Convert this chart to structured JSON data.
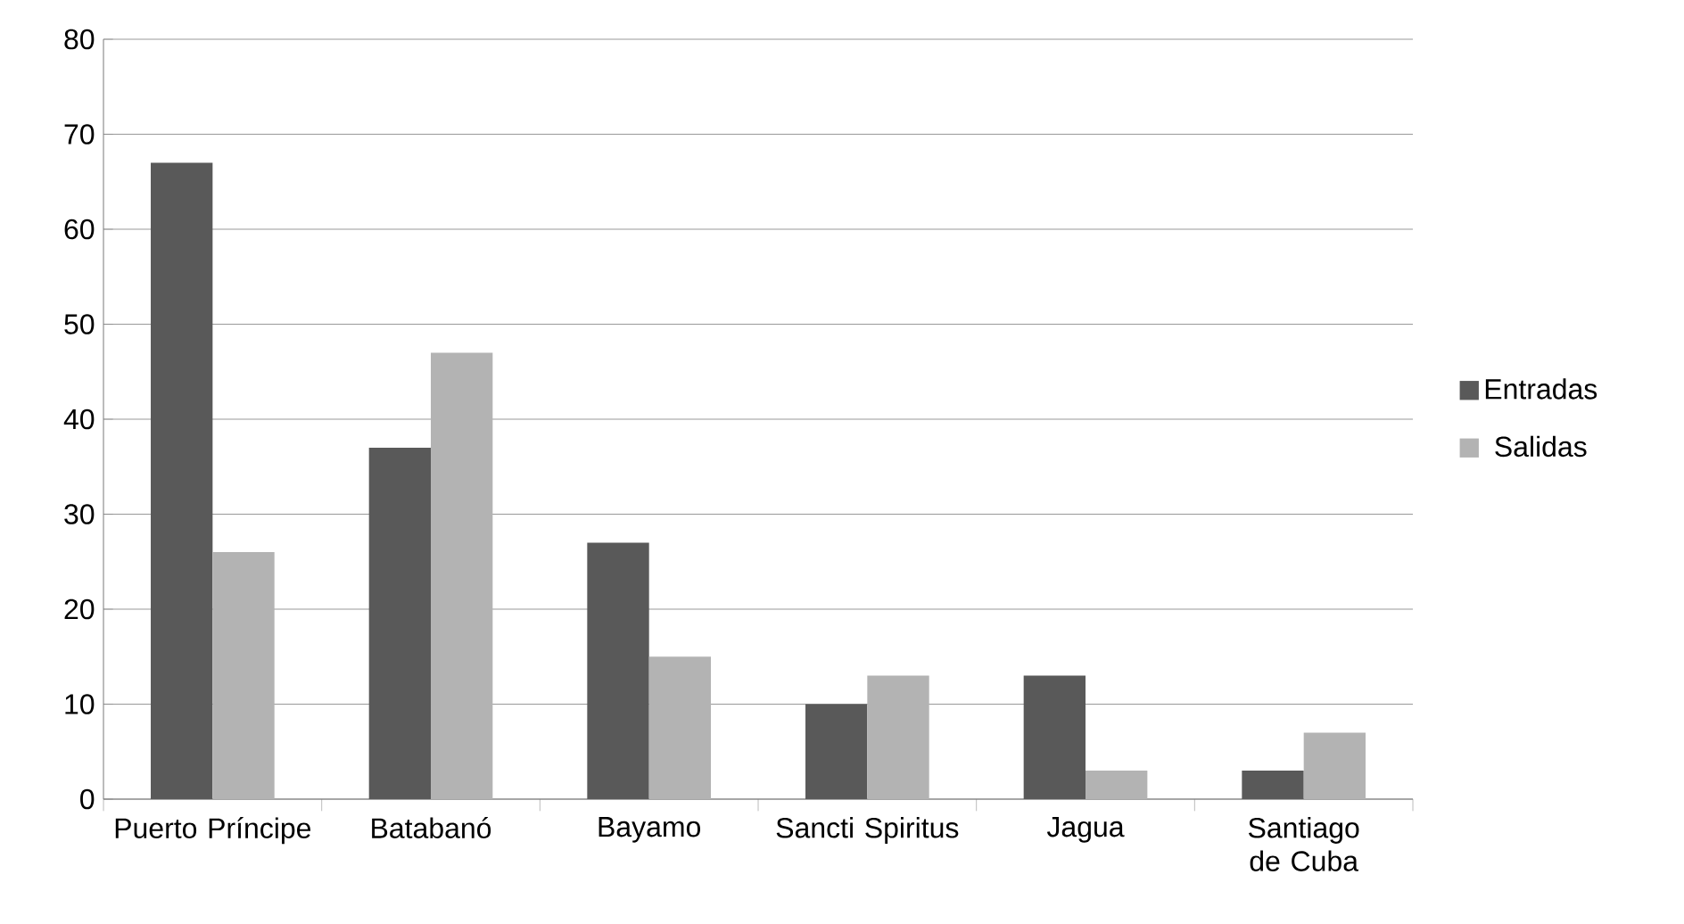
{
  "chart_data": {
    "type": "bar",
    "categories": [
      "Puerto Príncipe",
      "Batabanó",
      "Bayamo",
      "Sancti Spiritus",
      "Jagua",
      "Santiago de Cuba"
    ],
    "series": [
      {
        "name": "Entradas",
        "color": "#595959",
        "values": [
          67,
          37,
          27,
          10,
          13,
          3
        ]
      },
      {
        "name": "Salidas",
        "color": "#b3b3b3",
        "values": [
          26,
          47,
          15,
          13,
          3,
          7
        ]
      }
    ],
    "ylim": [
      0,
      80
    ],
    "yticks": [
      0,
      10,
      20,
      30,
      40,
      50,
      60,
      70,
      80
    ],
    "grid": "y",
    "legend": "right"
  }
}
